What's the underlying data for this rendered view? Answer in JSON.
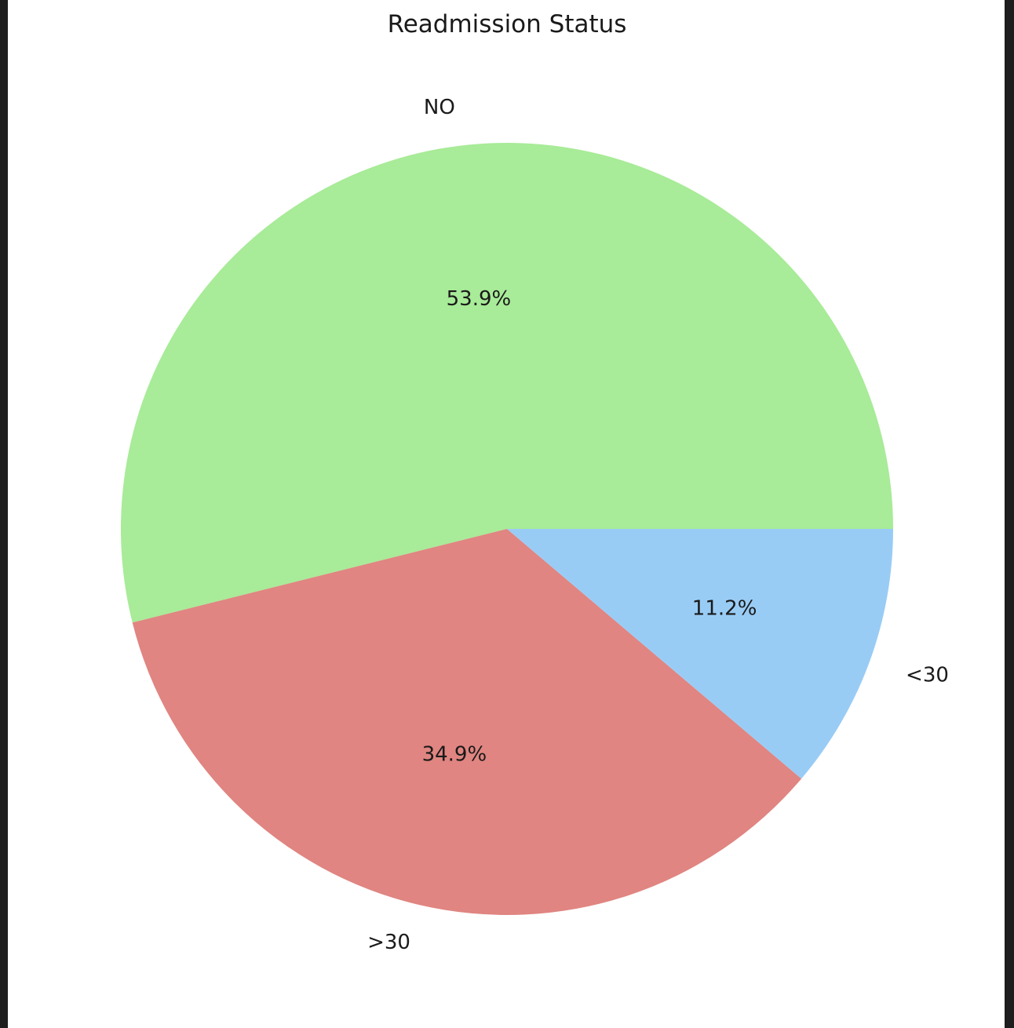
{
  "chart_data": {
    "type": "pie",
    "title": "Readmission Status",
    "categories": [
      "NO",
      ">30",
      "<30"
    ],
    "values": [
      53.9,
      34.9,
      11.2
    ],
    "value_labels": [
      "53.9%",
      "34.9%",
      "11.2%"
    ],
    "colors": [
      "#a8eb98",
      "#e08581",
      "#99ccf5"
    ],
    "start_angle_deg": 0,
    "direction": "counterclockwise"
  }
}
